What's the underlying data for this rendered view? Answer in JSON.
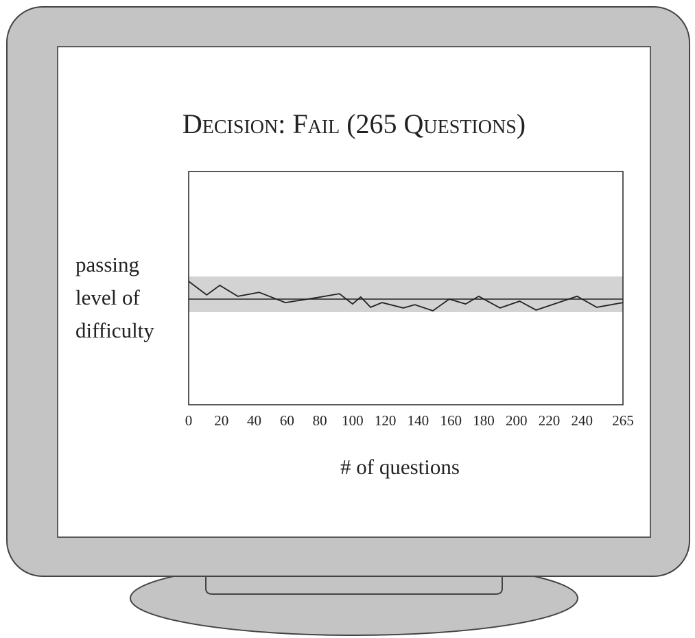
{
  "chart_data": {
    "type": "line",
    "title": "Decision: Fail (265 Questions)",
    "y_label": "passing level of difficulty",
    "x_label": "# of questions",
    "x": [
      0,
      11,
      19,
      30,
      43,
      59,
      78,
      92,
      100,
      105,
      111,
      118,
      131,
      138,
      149,
      159,
      169,
      177,
      190,
      202,
      212,
      237,
      249,
      265
    ],
    "series": [
      {
        "color": "#222222",
        "values": [
          52.9,
          47.1,
          51.2,
          46.5,
          48.2,
          43.8,
          45.9,
          47.6,
          43.2,
          46.2,
          41.8,
          43.8,
          41.5,
          42.9,
          40.3,
          45.3,
          43.2,
          46.5,
          41.5,
          44.4,
          40.6,
          46.5,
          41.8,
          43.8
        ]
      }
    ],
    "passing_level": 45.3,
    "passing_band": [
      39.7,
      55
    ],
    "band_color": "#d3d3d3",
    "xlim": [
      0,
      265
    ],
    "ylim": [
      0,
      100
    ],
    "xticks": [
      0,
      20,
      40,
      60,
      80,
      100,
      120,
      140,
      160,
      180,
      200,
      220,
      240,
      265
    ]
  }
}
